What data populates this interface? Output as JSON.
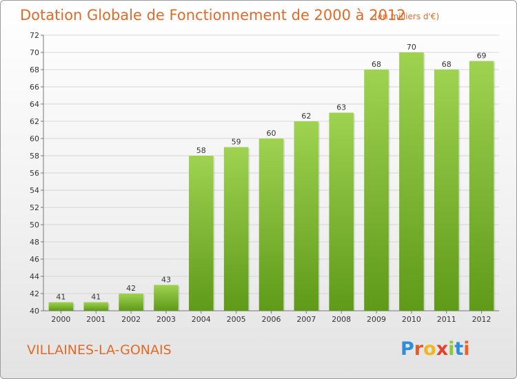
{
  "title": "Dotation Globale de Fonctionnement de 2000 à 2012",
  "subtitle": "(en milliers d'€)",
  "commune": "VILLAINES-LA-GONAIS",
  "logo": {
    "letters": [
      "P",
      "r",
      "o",
      "x",
      "i",
      "t",
      "i"
    ],
    "colors": [
      "#2f8ed8",
      "#e55a2b",
      "#f2b51d",
      "#e53f2d",
      "#8cc63f",
      "#2f8ed8",
      "#e8622a"
    ]
  },
  "colors": {
    "bar_top": "#9fd251",
    "bar_bottom": "#5f9a19",
    "title": "#e26a27"
  },
  "chart_data": {
    "type": "bar",
    "title": "Dotation Globale de Fonctionnement de 2000 à 2012",
    "subtitle": "(en milliers d'€)",
    "categories": [
      "2000",
      "2001",
      "2002",
      "2003",
      "2004",
      "2005",
      "2006",
      "2007",
      "2008",
      "2009",
      "2010",
      "2011",
      "2012"
    ],
    "values": [
      41,
      41,
      42,
      43,
      58,
      59,
      60,
      62,
      63,
      68,
      70,
      68,
      69
    ],
    "ylim": [
      40,
      72
    ],
    "yticks": [
      40,
      42,
      44,
      46,
      48,
      50,
      52,
      54,
      56,
      58,
      60,
      62,
      64,
      66,
      68,
      70,
      72
    ],
    "grid": true,
    "xlabel": "",
    "ylabel": ""
  }
}
